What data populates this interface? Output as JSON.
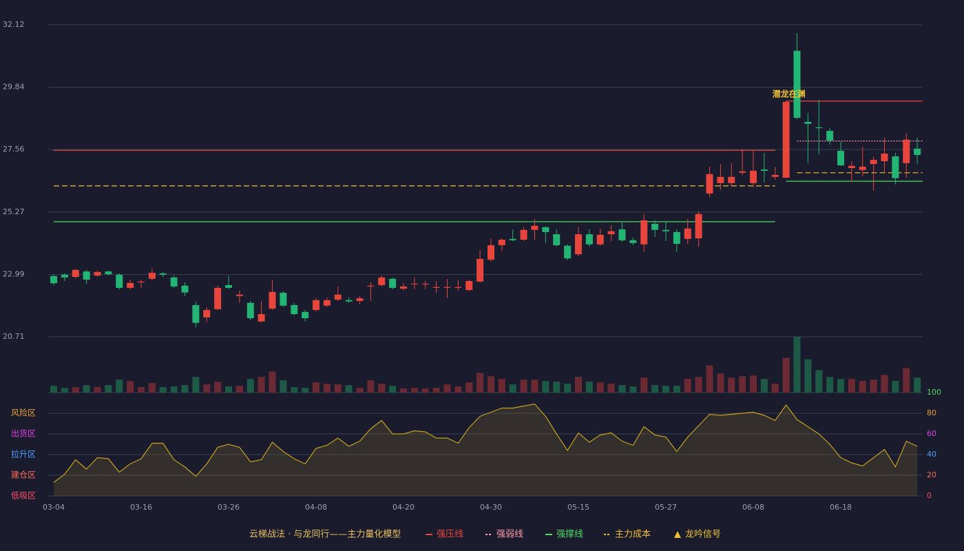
{
  "chart_data": {
    "type": "candlestick",
    "categories": [
      "03-04",
      null,
      null,
      null,
      null,
      null,
      null,
      null,
      "03-16",
      null,
      null,
      null,
      null,
      null,
      null,
      null,
      "03-26",
      null,
      null,
      null,
      null,
      null,
      null,
      null,
      "04-08",
      null,
      null,
      null,
      null,
      null,
      null,
      null,
      "04-20",
      null,
      null,
      null,
      null,
      null,
      null,
      null,
      "04-30",
      null,
      null,
      null,
      null,
      null,
      null,
      null,
      "05-15",
      null,
      null,
      null,
      null,
      null,
      null,
      null,
      "05-27",
      null,
      null,
      null,
      null,
      null,
      null,
      null,
      "06-08",
      null,
      null,
      null,
      null,
      null,
      null,
      null,
      "06-18",
      null,
      null,
      null,
      null,
      null,
      null,
      null
    ],
    "open": [
      22.93,
      22.98,
      22.9,
      23.1,
      22.95,
      23.1,
      22.98,
      22.5,
      22.7,
      22.83,
      23.03,
      22.88,
      22.58,
      21.87,
      21.42,
      21.72,
      22.6,
      22.2,
      21.95,
      21.27,
      21.74,
      22.32,
      21.87,
      21.62,
      21.69,
      21.85,
      22.07,
      22.05,
      22.02,
      22.55,
      22.6,
      22.83,
      22.47,
      22.63,
      22.63,
      22.5,
      22.5,
      22.5,
      22.42,
      22.73,
      23.53,
      24.06,
      24.29,
      24.26,
      24.62,
      24.72,
      24.46,
      24.04,
      23.73,
      24.46,
      24.09,
      24.46,
      24.64,
      24.24,
      24.09,
      24.84,
      24.62,
      24.54,
      24.29,
      24.31,
      25.95,
      26.33,
      26.33,
      26.71,
      26.33,
      26.83,
      26.56,
      26.53,
      31.17,
      28.57,
      28.37,
      28.24,
      27.51,
      26.88,
      26.81,
      27.03,
      27.13,
      27.31,
      27.06,
      27.59
    ],
    "high": [
      22.98,
      23.03,
      23.18,
      23.16,
      23.13,
      23.13,
      23.03,
      22.8,
      22.8,
      23.21,
      23.08,
      22.95,
      22.7,
      22.0,
      21.79,
      22.58,
      22.95,
      22.4,
      22.02,
      22.02,
      22.78,
      22.37,
      21.95,
      21.69,
      22.12,
      22.15,
      22.55,
      22.15,
      22.2,
      22.7,
      22.95,
      22.88,
      22.68,
      22.88,
      22.75,
      22.75,
      22.83,
      22.78,
      22.8,
      23.89,
      24.29,
      24.31,
      24.64,
      24.72,
      25.02,
      24.74,
      24.64,
      24.09,
      24.72,
      24.64,
      24.67,
      24.79,
      24.89,
      24.34,
      25.2,
      24.97,
      24.92,
      24.64,
      25.02,
      25.3,
      26.93,
      27.03,
      27.06,
      27.56,
      27.54,
      27.44,
      26.93,
      29.35,
      31.82,
      28.9,
      29.38,
      28.34,
      27.84,
      27.13,
      27.66,
      27.29,
      27.99,
      27.44,
      28.14,
      27.99
    ],
    "low": [
      22.6,
      22.75,
      22.85,
      22.65,
      22.9,
      22.95,
      22.45,
      22.45,
      22.5,
      22.78,
      22.9,
      22.5,
      22.2,
      21.06,
      21.24,
      21.69,
      22.45,
      21.95,
      21.32,
      21.24,
      21.69,
      21.8,
      21.49,
      21.27,
      21.64,
      21.8,
      22.02,
      21.95,
      21.9,
      22.02,
      22.55,
      22.45,
      22.4,
      22.45,
      22.45,
      22.32,
      22.12,
      22.4,
      22.37,
      22.7,
      23.46,
      23.84,
      24.21,
      24.21,
      24.26,
      24.14,
      24.01,
      23.51,
      23.66,
      24.01,
      24.04,
      24.21,
      24.19,
      24.06,
      23.81,
      24.36,
      24.21,
      23.81,
      24.09,
      24.01,
      25.83,
      26.08,
      26.2,
      26.63,
      26.18,
      26.35,
      26.46,
      26.51,
      28.67,
      27.06,
      27.39,
      27.74,
      26.96,
      26.38,
      26.58,
      26.05,
      26.73,
      26.28,
      26.53,
      27.03
    ],
    "close": [
      22.67,
      22.88,
      23.16,
      22.8,
      23.08,
      23.0,
      22.5,
      22.68,
      22.73,
      23.05,
      22.98,
      22.55,
      22.33,
      21.22,
      21.69,
      22.5,
      22.5,
      22.25,
      21.39,
      21.54,
      22.35,
      21.85,
      21.54,
      21.39,
      22.05,
      22.05,
      22.25,
      22.0,
      22.12,
      22.58,
      22.88,
      22.5,
      22.55,
      22.65,
      22.65,
      22.53,
      22.53,
      22.53,
      22.75,
      23.56,
      24.06,
      24.26,
      24.24,
      24.62,
      24.77,
      24.54,
      24.06,
      23.58,
      24.46,
      24.09,
      24.44,
      24.57,
      24.24,
      24.14,
      24.97,
      24.62,
      24.57,
      24.11,
      24.67,
      25.2,
      26.66,
      26.56,
      26.56,
      26.76,
      26.78,
      26.78,
      26.63,
      29.3,
      28.72,
      28.5,
      28.34,
      27.89,
      26.98,
      26.96,
      26.93,
      27.18,
      27.41,
      26.51,
      27.92,
      27.36
    ],
    "up_color": "#e8453c",
    "down_color": "#22b573",
    "ylim": [
      20.71,
      32.12
    ],
    "yticks": [
      32.12,
      29.84,
      27.56,
      25.27,
      22.99,
      20.71
    ],
    "grid": true,
    "volume": {
      "ylim": [
        0,
        82
      ],
      "up_color": "#6b2a33",
      "down_color": "#1d5a45",
      "values": [
        10,
        7,
        8,
        11,
        8,
        11,
        19,
        17,
        8,
        14,
        8,
        9,
        11,
        23,
        12,
        16,
        9,
        10,
        20,
        23,
        31,
        18,
        8,
        7,
        15,
        13,
        12,
        11,
        7,
        18,
        13,
        10,
        6,
        7,
        6,
        7,
        12,
        9,
        15,
        29,
        24,
        20,
        12,
        19,
        19,
        17,
        16,
        13,
        23,
        16,
        15,
        13,
        11,
        9,
        22,
        11,
        10,
        10,
        20,
        23,
        40,
        28,
        22,
        24,
        25,
        20,
        13,
        51,
        82,
        49,
        33,
        23,
        20,
        20,
        17,
        19,
        26,
        17,
        36,
        22
      ]
    },
    "oscillator": {
      "ylim": [
        0,
        100
      ],
      "yticks": [
        0,
        20,
        40,
        60,
        80,
        100
      ],
      "tick_colors": [
        "#ff4d6d",
        "#ff6a5a",
        "#4a9eff",
        "#e040e0",
        "#e8a030",
        "#4cd964"
      ],
      "color": "#c8a020",
      "values": [
        13,
        21,
        35,
        26,
        37,
        36,
        23,
        31,
        36,
        51,
        51,
        35,
        28,
        19,
        31,
        47,
        50,
        47,
        33,
        35,
        52,
        43,
        36,
        31,
        46,
        49,
        56,
        48,
        53,
        65,
        73,
        60,
        60,
        63,
        62,
        56,
        56,
        51,
        66,
        77,
        81,
        85,
        85,
        87,
        89,
        77,
        60,
        44,
        61,
        52,
        59,
        61,
        53,
        49,
        67,
        59,
        57,
        43,
        57,
        68,
        79,
        78,
        79,
        80,
        81,
        78,
        73,
        88,
        74,
        67,
        60,
        50,
        37,
        32,
        29,
        37,
        45,
        28,
        53,
        48
      ],
      "zones": [
        {
          "label": "风险区",
          "value": 80,
          "color": "#e8a030"
        },
        {
          "label": "出货区",
          "value": 60,
          "color": "#e040e0"
        },
        {
          "label": "拉升区",
          "value": 40,
          "color": "#4a9eff"
        },
        {
          "label": "建仓区",
          "value": 20,
          "color": "#ff6a5a"
        },
        {
          "label": "低吸区",
          "value": 0,
          "color": "#ff4d6d"
        }
      ]
    },
    "levels": [
      {
        "name": "强压线",
        "color": "#e8453c",
        "dash": "none",
        "segments": [
          {
            "from": 0,
            "to": 66,
            "value": 27.53
          },
          {
            "from": 67,
            "to": 79,
            "value": 29.33
          }
        ]
      },
      {
        "name": "强弱线",
        "color": "#ff9aa8",
        "dash": "2,2",
        "segments": [
          {
            "from": 68,
            "to": 79,
            "value": 27.87
          }
        ]
      },
      {
        "name": "强撑线",
        "color": "#4cd964",
        "dash": "none",
        "segments": [
          {
            "from": 0,
            "to": 66,
            "value": 24.92
          },
          {
            "from": 67,
            "to": 79,
            "value": 26.4
          }
        ]
      },
      {
        "name": "主力成本",
        "color": "#f0c030",
        "dash": "8,4",
        "segments": [
          {
            "from": 0,
            "to": 66,
            "value": 26.23
          },
          {
            "from": 68,
            "to": 79,
            "value": 26.71
          }
        ]
      }
    ],
    "signal": {
      "name": "龙吟信号",
      "label": "潜龙在渊",
      "at": 67,
      "color": "#f0c030"
    },
    "legend_title": "云梯战法 · 与龙同行——主力量化模型"
  }
}
